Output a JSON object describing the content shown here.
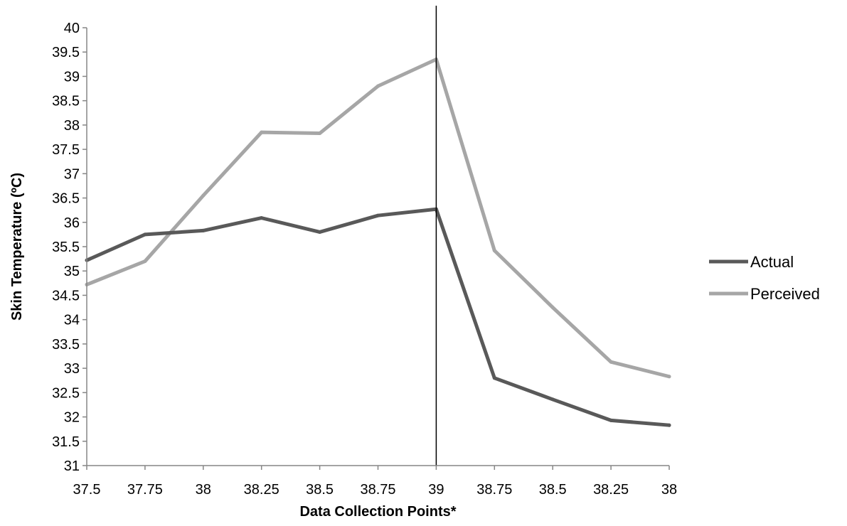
{
  "chart_data": {
    "type": "line",
    "title": "",
    "xlabel": "Data Collection Points*",
    "ylabel": "Skin Temperature (ºC)",
    "categories": [
      "37.5",
      "37.75",
      "38",
      "38.25",
      "38.5",
      "38.75",
      "39",
      "38.75",
      "38.5",
      "38.25",
      "38"
    ],
    "ylim": [
      31,
      40
    ],
    "yticks": [
      "31",
      "31.5",
      "32",
      "32.5",
      "33",
      "33.5",
      "34",
      "34.5",
      "35",
      "35.5",
      "36",
      "36.5",
      "37",
      "37.5",
      "38",
      "38.5",
      "39",
      "39.5",
      "40"
    ],
    "grid": false,
    "legend_position": "right",
    "marker_line_category_index": 6,
    "series": [
      {
        "name": "Actual",
        "color": "#595959",
        "values": [
          35.22,
          35.75,
          35.83,
          36.09,
          35.8,
          36.14,
          36.27,
          32.8,
          32.36,
          31.93,
          31.83
        ]
      },
      {
        "name": "Perceived",
        "color": "#a6a6a6",
        "values": [
          34.72,
          35.2,
          36.55,
          37.85,
          37.83,
          38.8,
          39.35,
          35.42,
          34.25,
          33.13,
          32.83
        ]
      }
    ]
  }
}
